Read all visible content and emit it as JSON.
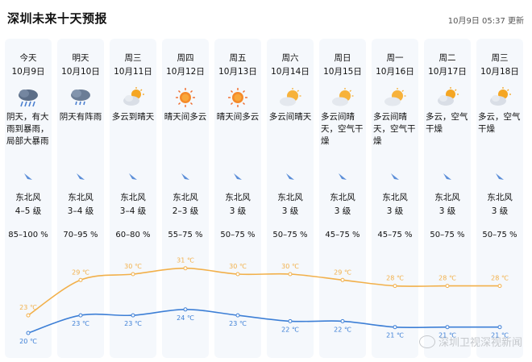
{
  "header": {
    "title": "深圳未来十天预报",
    "updated": "10月9日 05:37 更新"
  },
  "days": [
    {
      "day": "今天",
      "date": "10月9日",
      "icon": "heavy-rain-icon",
      "desc_lines": [
        "阴天，有大",
        "雨到暴雨，",
        "局部大暴雨"
      ],
      "wind_dir": "东北风",
      "wind_level": "4–5 级",
      "humidity": "85–100 %",
      "high": 23,
      "low": 20,
      "high_label": "23 ℃",
      "low_label": "20 ℃"
    },
    {
      "day": "明天",
      "date": "10月10日",
      "icon": "showers-icon",
      "desc_lines": [
        "阴天有阵雨"
      ],
      "wind_dir": "东北风",
      "wind_level": "3–4 级",
      "humidity": "70–95 %",
      "high": 29,
      "low": 23,
      "high_label": "29 ℃",
      "low_label": "23 ℃"
    },
    {
      "day": "周三",
      "date": "10月11日",
      "icon": "cloudy-sun-icon",
      "desc_lines": [
        "多云到晴天"
      ],
      "wind_dir": "东北风",
      "wind_level": "3–4 级",
      "humidity": "60–80 %",
      "high": 30,
      "low": 23,
      "high_label": "30 ℃",
      "low_label": "23 ℃"
    },
    {
      "day": "周四",
      "date": "10月12日",
      "icon": "sun-icon",
      "desc_lines": [
        "晴天间多云"
      ],
      "wind_dir": "东北风",
      "wind_level": "2–3 级",
      "humidity": "55–75 %",
      "high": 31,
      "low": 24,
      "high_label": "31 ℃",
      "low_label": "24 ℃"
    },
    {
      "day": "周五",
      "date": "10月13日",
      "icon": "sun-icon",
      "desc_lines": [
        "晴天间多云"
      ],
      "wind_dir": "东北风",
      "wind_level": "3 级",
      "humidity": "50–75 %",
      "high": 30,
      "low": 23,
      "high_label": "30 ℃",
      "low_label": "23 ℃"
    },
    {
      "day": "周六",
      "date": "10月14日",
      "icon": "partly-sunny-icon",
      "desc_lines": [
        "多云间晴天"
      ],
      "wind_dir": "东北风",
      "wind_level": "3 级",
      "humidity": "50–75 %",
      "high": 30,
      "low": 22,
      "high_label": "30 ℃",
      "low_label": "22 ℃"
    },
    {
      "day": "周日",
      "date": "10月15日",
      "icon": "partly-sunny-icon",
      "desc_lines": [
        "多云间晴",
        "天，空气干",
        "燥"
      ],
      "wind_dir": "东北风",
      "wind_level": "3 级",
      "humidity": "45–75 %",
      "high": 29,
      "low": 22,
      "high_label": "29 ℃",
      "low_label": "22 ℃"
    },
    {
      "day": "周一",
      "date": "10月16日",
      "icon": "partly-sunny-icon",
      "desc_lines": [
        "多云间晴",
        "天，空气干",
        "燥"
      ],
      "wind_dir": "东北风",
      "wind_level": "3 级",
      "humidity": "45–75 %",
      "high": 28,
      "low": 21,
      "high_label": "28 ℃",
      "low_label": "21 ℃"
    },
    {
      "day": "周二",
      "date": "10月17日",
      "icon": "cloudy-sun-icon",
      "desc_lines": [
        "多云，空气",
        "干燥"
      ],
      "wind_dir": "东北风",
      "wind_level": "3 级",
      "humidity": "50–75 %",
      "high": 28,
      "low": 21,
      "high_label": "28 ℃",
      "low_label": "21 ℃"
    },
    {
      "day": "周三",
      "date": "10月18日",
      "icon": "cloudy-sun-icon",
      "desc_lines": [
        "多云，空气",
        "干燥"
      ],
      "wind_dir": "东北风",
      "wind_level": "3 级",
      "humidity": "50–75 %",
      "high": 28,
      "low": 21,
      "high_label": "28 ℃",
      "low_label": "21 ℃"
    }
  ],
  "colors": {
    "high_line": "#f2b04a",
    "low_line": "#3d7fd6",
    "column_bg": "#f5f8fc",
    "wind_icon": "#5b8ed8"
  },
  "watermark": "深圳卫视深视新闻"
}
